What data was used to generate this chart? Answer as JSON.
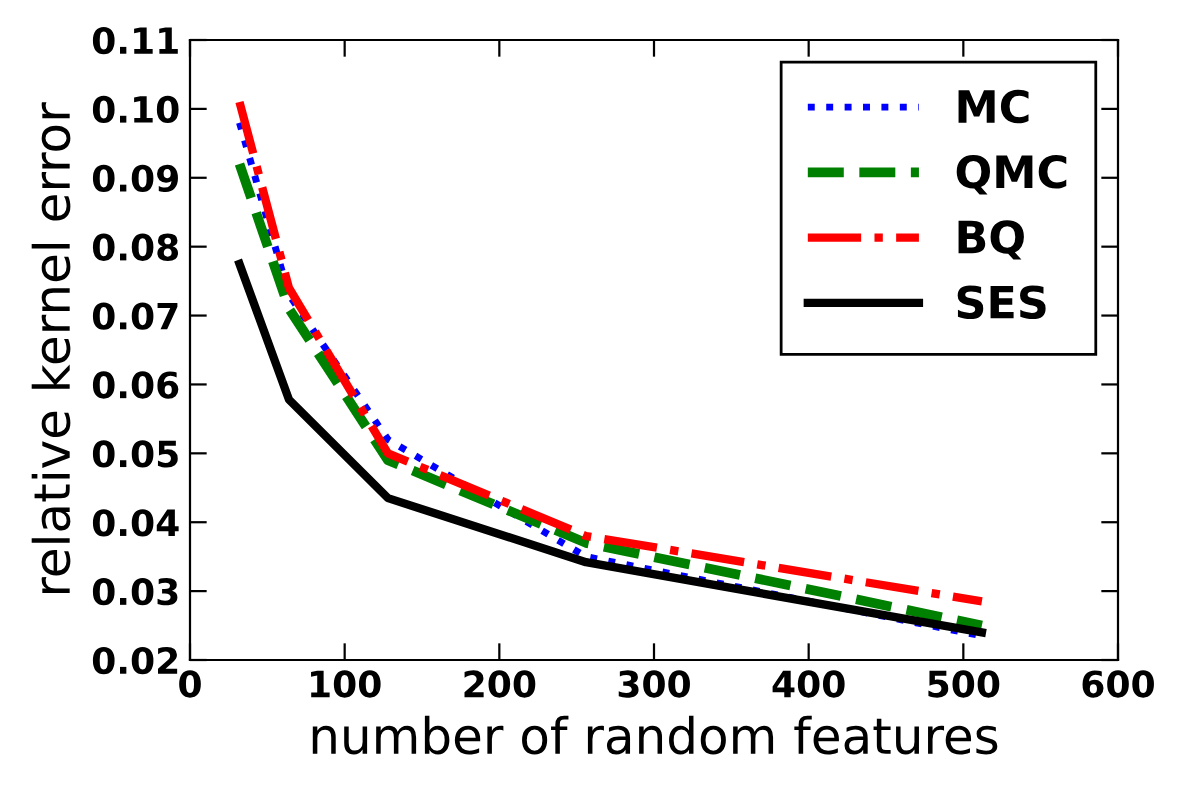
{
  "chart_data": {
    "type": "line",
    "xlabel": "number of random features",
    "ylabel": "relative kernel error",
    "x": [
      32,
      64,
      128,
      256,
      512
    ],
    "series": [
      {
        "name": "MC",
        "color": "#0000ff",
        "line_style": "dotted",
        "values": [
          0.098,
          0.073,
          0.052,
          0.035,
          0.0235
        ]
      },
      {
        "name": "QMC",
        "color": "#008000",
        "line_style": "dashed",
        "values": [
          0.092,
          0.071,
          0.049,
          0.037,
          0.025
        ]
      },
      {
        "name": "BQ",
        "color": "#ff0000",
        "line_style": "dashdot",
        "values": [
          0.101,
          0.074,
          0.05,
          0.038,
          0.0285
        ]
      },
      {
        "name": "SES",
        "color": "#000000",
        "line_style": "solid",
        "values": [
          0.0775,
          0.0578,
          0.0435,
          0.0342,
          0.024
        ]
      }
    ],
    "xlim": [
      0,
      600
    ],
    "xticks": [
      0,
      100,
      200,
      300,
      400,
      500,
      600
    ],
    "ylim": [
      0.02,
      0.11
    ],
    "yticks": [
      {
        "value": 0.02,
        "label": "0.02"
      },
      {
        "value": 0.03,
        "label": "0.03"
      },
      {
        "value": 0.04,
        "label": "0.04"
      },
      {
        "value": 0.05,
        "label": "0.05"
      },
      {
        "value": 0.06,
        "label": "0.06"
      },
      {
        "value": 0.07,
        "label": "0.07"
      },
      {
        "value": 0.08,
        "label": "0.08"
      },
      {
        "value": 0.09,
        "label": "0.09"
      },
      {
        "value": 0.1,
        "label": "0.10"
      },
      {
        "value": 0.11,
        "label": "0.11"
      }
    ],
    "legend": "top right",
    "grid": false
  }
}
